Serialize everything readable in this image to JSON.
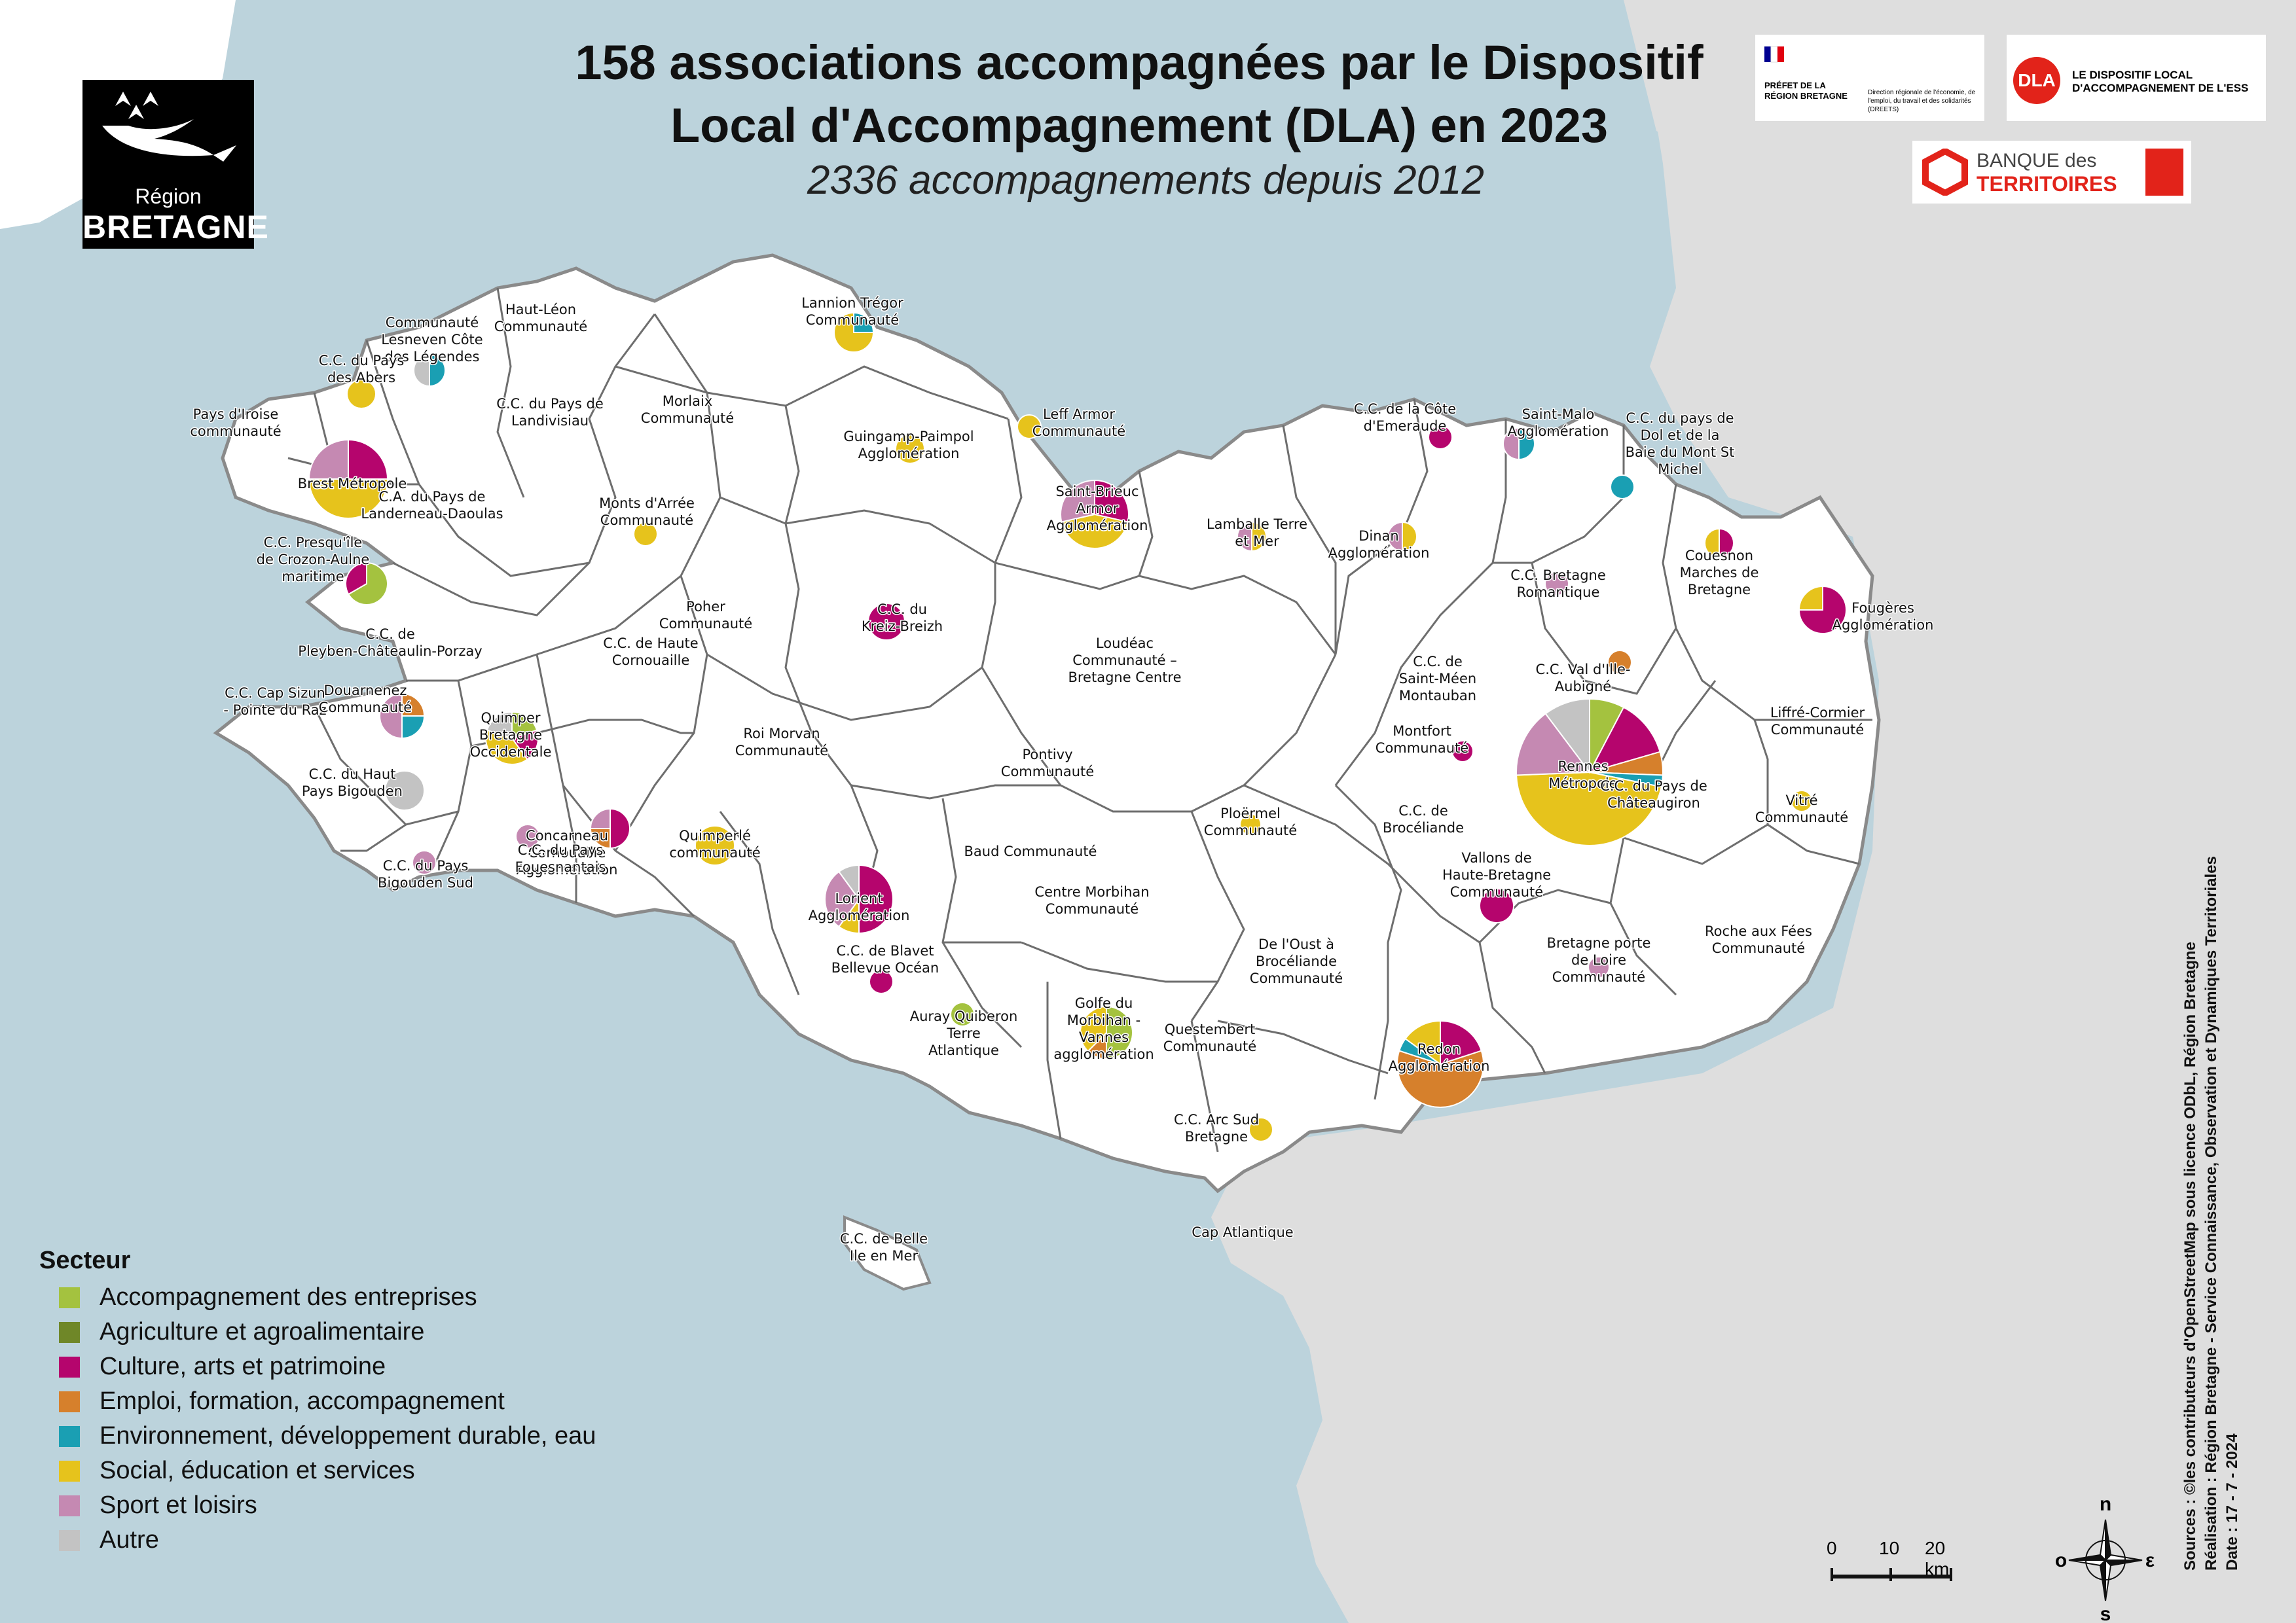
{
  "title_line1": "158 associations accompagnées par le Dispositif",
  "title_line2": "Local d'Accompagnement (DLA) en 2023",
  "subtitle": "2336  accompagnements depuis 2012",
  "logo_region": {
    "line1": "Région",
    "line2": "BRETAGNE"
  },
  "partners": {
    "prefet": "PRÉFET DE LA RÉGION BRETAGNE",
    "prefet_detail": "Direction régionale de l'économie, de l'emploi, du travail et des solidarités (DREETS)",
    "dla_badge": "DLA",
    "dla_text": "LE DISPOSITIF LOCAL D'ACCOMPAGNEMENT DE L'ESS",
    "banque_line1": "BANQUE des",
    "banque_line2": "TERRITOIRES"
  },
  "colors": {
    "sea": "#bcd3dc",
    "land_other": "#dedede",
    "land_bzh": "#ffffff",
    "boundary": "#6e6e6e"
  },
  "legend": {
    "title": "Secteur",
    "items": [
      {
        "label": "Accompagnement des entreprises",
        "color": "#a4c23f"
      },
      {
        "label": "Agriculture et agroalimentaire",
        "color": "#6f8728"
      },
      {
        "label": "Culture, arts et patrimoine",
        "color": "#b5056d"
      },
      {
        "label": "Emploi, formation, accompagnement",
        "color": "#d6802c"
      },
      {
        "label": "Environnement, développement durable, eau",
        "color": "#1a9fb3"
      },
      {
        "label": "Social, éducation et services",
        "color": "#e6c31c"
      },
      {
        "label": "Sport et loisirs",
        "color": "#c589b2"
      },
      {
        "label": "Autre",
        "color": "#c3c3c3"
      }
    ]
  },
  "labels": [
    {
      "text": [
        "Communauté",
        "Lesneven Côte",
        "des Légendes"
      ]
    },
    {
      "text": [
        "Haut-Léon",
        "Communauté"
      ]
    },
    {
      "text": [
        "Lannion Trégor",
        "Communauté"
      ]
    },
    {
      "text": [
        "C.C. du Pays",
        "des Abers"
      ]
    },
    {
      "text": [
        "Pays d'Iroise",
        "communauté"
      ]
    },
    {
      "text": [
        "C.C. du Pays de",
        "Landivisiau"
      ]
    },
    {
      "text": [
        "Morlaix",
        "Communauté"
      ]
    },
    {
      "text": [
        "Leff Armor",
        "Communauté"
      ]
    },
    {
      "text": [
        "Guingamp-Paimpol",
        "Agglomération"
      ]
    },
    {
      "text": [
        "C.C. de la Côte",
        "d'Emeraude"
      ]
    },
    {
      "text": [
        "Saint-Malo",
        "Agglomération"
      ]
    },
    {
      "text": [
        "C.C. du pays de",
        "Dol et de la",
        "Baie du Mont St",
        "Michel"
      ]
    },
    {
      "text": [
        "Brest Métropole"
      ]
    },
    {
      "text": [
        "C.A. du Pays de",
        "Landerneau-Daoulas"
      ]
    },
    {
      "text": [
        "Monts d'Arrée",
        "Communauté"
      ]
    },
    {
      "text": [
        "Saint-Brieuc",
        "Armor",
        "Agglomération"
      ]
    },
    {
      "text": [
        "Lamballe Terre",
        "et Mer"
      ]
    },
    {
      "text": [
        "Dinan",
        "Agglomération"
      ]
    },
    {
      "text": [
        "C.C. Presqu'île",
        "de Crozon-Aulne",
        "maritime"
      ]
    },
    {
      "text": [
        "Couesnon",
        "Marches de",
        "Bretagne"
      ]
    },
    {
      "text": [
        "C.C. Bretagne",
        "Romantique"
      ]
    },
    {
      "text": [
        "Fougères",
        "Agglomération"
      ]
    },
    {
      "text": [
        "Poher",
        "Communauté"
      ]
    },
    {
      "text": [
        "C.C. du",
        "Kreiz-Breizh"
      ]
    },
    {
      "text": [
        "C.C. de",
        "Pleyben-Châteaulin-Porzay"
      ]
    },
    {
      "text": [
        "C.C. de Haute",
        "Cornouaille"
      ]
    },
    {
      "text": [
        "Loudéac",
        "Communauté –",
        "Bretagne Centre"
      ]
    },
    {
      "text": [
        "C.C. de",
        "Saint-Méen",
        "Montauban"
      ]
    },
    {
      "text": [
        "C.C. Val d'Ille-",
        "Aubigné"
      ]
    },
    {
      "text": [
        "C.C. Cap Sizun",
        "- Pointe du Raz"
      ]
    },
    {
      "text": [
        "Douarnenez",
        "Communauté"
      ]
    },
    {
      "text": [
        "Liffré-Cormier",
        "Communauté"
      ]
    },
    {
      "text": [
        "Quimper",
        "Bretagne",
        "Occidentale"
      ]
    },
    {
      "text": [
        "Roi Morvan",
        "Communauté"
      ]
    },
    {
      "text": [
        "Pontivy",
        "Communauté"
      ]
    },
    {
      "text": [
        "Montfort",
        "Communauté"
      ]
    },
    {
      "text": [
        "Rennes",
        "Métropole"
      ]
    },
    {
      "text": [
        "C.C. du Pays de",
        "Châteaugiron"
      ]
    },
    {
      "text": [
        "C.C. du Haut",
        "Pays Bigouden"
      ]
    },
    {
      "text": [
        "Vitré",
        "Communauté"
      ]
    },
    {
      "text": [
        "Ploërmel",
        "Communauté"
      ]
    },
    {
      "text": [
        "C.C. de",
        "Brocéliande"
      ]
    },
    {
      "text": [
        "Concarneau",
        "Cornouaille",
        "Agglomération"
      ]
    },
    {
      "text": [
        "C.C. du Pays",
        "Fouesnantais"
      ]
    },
    {
      "text": [
        "Quimperlé",
        "communauté"
      ]
    },
    {
      "text": [
        "Baud Communauté"
      ]
    },
    {
      "text": [
        "C.C. du Pays",
        "Bigouden Sud"
      ]
    },
    {
      "text": [
        "Vallons de",
        "Haute-Bretagne",
        "Communauté"
      ]
    },
    {
      "text": [
        "Lorient",
        "Agglomération"
      ]
    },
    {
      "text": [
        "Centre Morbihan",
        "Communauté"
      ]
    },
    {
      "text": [
        "Roche aux Fées",
        "Communauté"
      ]
    },
    {
      "text": [
        "C.C. de Blavet",
        "Bellevue Océan"
      ]
    },
    {
      "text": [
        "De l'Oust à",
        "Brocéliande",
        "Communauté"
      ]
    },
    {
      "text": [
        "Bretagne porte",
        "de Loire",
        "Communauté"
      ]
    },
    {
      "text": [
        "Auray Quiberon",
        "Terre",
        "Atlantique"
      ]
    },
    {
      "text": [
        "Golfe du",
        "Morbihan -",
        "Vannes",
        "agglomération"
      ]
    },
    {
      "text": [
        "Questembert",
        "Communauté"
      ]
    },
    {
      "text": [
        "Redon",
        "Agglomération"
      ]
    },
    {
      "text": [
        "C.C. Arc Sud",
        "Bretagne"
      ]
    },
    {
      "text": [
        "C.C. de Belle",
        "Ile en Mer"
      ]
    },
    {
      "text": [
        "Cap Atlantique"
      ]
    }
  ],
  "pies": [
    {
      "name": "Brest Métropole",
      "slices": [
        {
          "s": "Culture, arts et patrimoine",
          "v": 3
        },
        {
          "s": "Social, éducation et services",
          "v": 6
        },
        {
          "s": "Sport et loisirs",
          "v": 3
        }
      ]
    },
    {
      "name": "Rennes Métropole",
      "slices": [
        {
          "s": "Accompagnement des entreprises",
          "v": 3
        },
        {
          "s": "Culture, arts et patrimoine",
          "v": 5
        },
        {
          "s": "Emploi, formation, accompagnement",
          "v": 2
        },
        {
          "s": "Environnement, développement durable, eau",
          "v": 1
        },
        {
          "s": "Social, éducation et services",
          "v": 18
        },
        {
          "s": "Sport et loisirs",
          "v": 6
        },
        {
          "s": "Autre",
          "v": 4
        }
      ]
    },
    {
      "name": "Lorient Agglomération",
      "slices": [
        {
          "s": "Culture, arts et patrimoine",
          "v": 5
        },
        {
          "s": "Social, éducation et services",
          "v": 1
        },
        {
          "s": "Sport et loisirs",
          "v": 3
        },
        {
          "s": "Autre",
          "v": 1
        }
      ]
    },
    {
      "name": "Redon Agglomération",
      "slices": [
        {
          "s": "Culture, arts et patrimoine",
          "v": 2
        },
        {
          "s": "Emploi, formation, accompagnement",
          "v": 6
        },
        {
          "s": "Environnement, développement durable, eau",
          "v": 0.5
        },
        {
          "s": "Social, éducation et services",
          "v": 1.5
        }
      ]
    },
    {
      "name": "Saint-Brieuc Armor Agglomération",
      "slices": [
        {
          "s": "Culture, arts et patrimoine",
          "v": 2
        },
        {
          "s": "Social, éducation et services",
          "v": 3
        },
        {
          "s": "Sport et loisirs",
          "v": 2
        }
      ]
    },
    {
      "name": "Lannion Trégor Communauté",
      "slices": [
        {
          "s": "Environnement, développement durable, eau",
          "v": 1
        },
        {
          "s": "Social, éducation et services",
          "v": 3
        }
      ]
    },
    {
      "name": "Quimper Bretagne Occidentale",
      "slices": [
        {
          "s": "Accompagnement des entreprises",
          "v": 1
        },
        {
          "s": "Culture, arts et patrimoine",
          "v": 1
        },
        {
          "s": "Social, éducation et services",
          "v": 2
        },
        {
          "s": "Autre",
          "v": 1
        }
      ]
    },
    {
      "name": "Douarnenez Communauté",
      "slices": [
        {
          "s": "Emploi, formation, accompagnement",
          "v": 1
        },
        {
          "s": "Environnement, développement durable, eau",
          "v": 1
        },
        {
          "s": "Sport et loisirs",
          "v": 2
        }
      ]
    },
    {
      "name": "Concarneau Cornouaille Agglomération",
      "slices": [
        {
          "s": "Culture, arts et patrimoine",
          "v": 2
        },
        {
          "s": "Emploi, formation, accompagnement",
          "v": 1
        },
        {
          "s": "Sport et loisirs",
          "v": 1
        }
      ]
    },
    {
      "name": "C.C. Presqu'île de Crozon-Aulne maritime",
      "slices": [
        {
          "s": "Accompagnement des entreprises",
          "v": 2
        },
        {
          "s": "Culture, arts et patrimoine",
          "v": 1
        }
      ]
    },
    {
      "name": "Fougères Agglomération",
      "slices": [
        {
          "s": "Culture, arts et patrimoine",
          "v": 3
        },
        {
          "s": "Social, éducation et services",
          "v": 1
        }
      ]
    },
    {
      "name": "Golfe du Morbihan - Vannes agglomération",
      "slices": [
        {
          "s": "Accompagnement des entreprises",
          "v": 2
        },
        {
          "s": "Emploi, formation, accompagnement",
          "v": 0.5
        },
        {
          "s": "Social, éducation et services",
          "v": 1.5
        }
      ]
    },
    {
      "name": "Communauté Lesneven Côte des Légendes",
      "slices": [
        {
          "s": "Environnement, développement durable, eau",
          "v": 1
        },
        {
          "s": "Autre",
          "v": 1
        }
      ]
    },
    {
      "name": "Saint-Malo Agglomération",
      "slices": [
        {
          "s": "Environnement, développement durable, eau",
          "v": 1
        },
        {
          "s": "Sport et loisirs",
          "v": 1
        }
      ]
    },
    {
      "name": "Lamballe Terre et Mer",
      "slices": [
        {
          "s": "Social, éducation et services",
          "v": 1
        },
        {
          "s": "Sport et loisirs",
          "v": 1
        }
      ]
    },
    {
      "name": "Dinan Agglomération",
      "slices": [
        {
          "s": "Social, éducation et services",
          "v": 1
        },
        {
          "s": "Sport et loisirs",
          "v": 1
        }
      ]
    },
    {
      "name": "C.C. du Pays des Abers",
      "slices": [
        {
          "s": "Social, éducation et services",
          "v": 1
        }
      ]
    },
    {
      "name": "Guingamp-Paimpol Agglomération",
      "slices": [
        {
          "s": "Social, éducation et services",
          "v": 1
        }
      ]
    },
    {
      "name": "Leff Armor Communauté",
      "slices": [
        {
          "s": "Social, éducation et services",
          "v": 1
        }
      ]
    },
    {
      "name": "Monts d'Arrée Communauté",
      "slices": [
        {
          "s": "Social, éducation et services",
          "v": 1
        }
      ]
    },
    {
      "name": "C.C. du Kreiz-Breizh",
      "slices": [
        {
          "s": "Culture, arts et patrimoine",
          "v": 1
        }
      ]
    },
    {
      "name": "C.C. de la Côte d'Emeraude",
      "slices": [
        {
          "s": "Culture, arts et patrimoine",
          "v": 1
        }
      ]
    },
    {
      "name": "C.C. du pays de Dol et de la Baie du Mont St Michel",
      "slices": [
        {
          "s": "Environnement, développement durable, eau",
          "v": 1
        }
      ]
    },
    {
      "name": "C.C. Bretagne Romantique",
      "slices": [
        {
          "s": "Sport et loisirs",
          "v": 1
        }
      ]
    },
    {
      "name": "Couesnon Marches de Bretagne",
      "slices": [
        {
          "s": "Culture, arts et patrimoine",
          "v": 1
        },
        {
          "s": "Social, éducation et services",
          "v": 1
        }
      ]
    },
    {
      "name": "C.C. Val d'Ille-Aubigné",
      "slices": [
        {
          "s": "Emploi, formation, accompagnement",
          "v": 1
        }
      ]
    },
    {
      "name": "Montfort Communauté",
      "slices": [
        {
          "s": "Culture, arts et patrimoine",
          "v": 1
        }
      ]
    },
    {
      "name": "Vitré Communauté",
      "slices": [
        {
          "s": "Social, éducation et services",
          "v": 1
        }
      ]
    },
    {
      "name": "Ploërmel Communauté",
      "slices": [
        {
          "s": "Social, éducation et services",
          "v": 1
        }
      ]
    },
    {
      "name": "Vallons de Haute-Bretagne Communauté",
      "slices": [
        {
          "s": "Culture, arts et patrimoine",
          "v": 1
        }
      ]
    },
    {
      "name": "C.C. du Haut Pays Bigouden",
      "slices": [
        {
          "s": "Autre",
          "v": 1
        }
      ]
    },
    {
      "name": "C.C. du Pays Bigouden Sud",
      "slices": [
        {
          "s": "Sport et loisirs",
          "v": 1
        }
      ]
    },
    {
      "name": "C.C. du Pays Fouesnantais",
      "slices": [
        {
          "s": "Sport et loisirs",
          "v": 1
        }
      ]
    },
    {
      "name": "Quimperlé communauté",
      "slices": [
        {
          "s": "Social, éducation et services",
          "v": 1
        }
      ]
    },
    {
      "name": "C.C. de Blavet Bellevue Océan",
      "slices": [
        {
          "s": "Culture, arts et patrimoine",
          "v": 1
        }
      ]
    },
    {
      "name": "Auray Quiberon Terre Atlantique",
      "slices": [
        {
          "s": "Accompagnement des entreprises",
          "v": 1
        }
      ]
    },
    {
      "name": "C.C. Arc Sud Bretagne",
      "slices": [
        {
          "s": "Social, éducation et services",
          "v": 1
        }
      ]
    },
    {
      "name": "Bretagne porte de Loire Communauté",
      "slices": [
        {
          "s": "Sport et loisirs",
          "v": 1
        }
      ]
    }
  ],
  "scale": {
    "t0": "0",
    "t1": "10",
    "t2": "20 km"
  },
  "compass": {
    "n": "n",
    "s": "s",
    "e": "ε",
    "o": "o"
  },
  "sources": [
    "Sources : ©les contributeurs d'OpenStreetMap sous licence ODbL, Région Bretagne",
    "Réalisation : Région Bretagne - Service Connaissance, Observation et Dynamiques Territoriales",
    "Date : 17 - 7 - 2024"
  ]
}
